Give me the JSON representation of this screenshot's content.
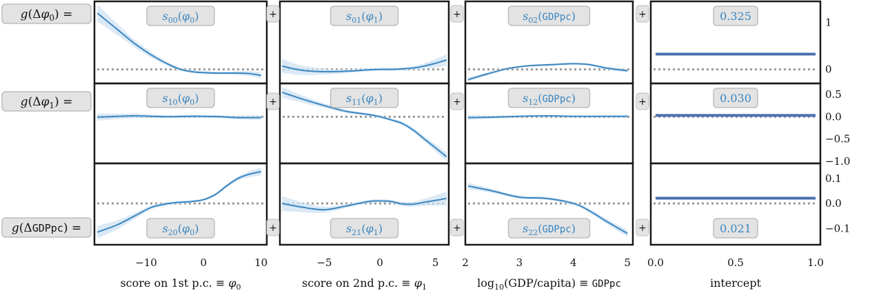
{
  "equation_labels": [
    {
      "func": "g",
      "arg_prefix": "(Δ",
      "arg": "φ",
      "sub": "0",
      "suffix": ") ="
    },
    {
      "func": "g",
      "arg_prefix": "(Δ",
      "arg": "φ",
      "sub": "1",
      "suffix": ") ="
    },
    {
      "func": "g",
      "arg_prefix": "(Δ",
      "arg": "GDPpc",
      "sub": "",
      "suffix": ") ="
    }
  ],
  "plus_sign": "+",
  "colors": {
    "line": "#3a86c0",
    "band": "#cfe2f3",
    "intercept_line": "#4a70b0",
    "zero_line": "#999999",
    "label_box_bg": "#e3e3e3",
    "label_box_border": "#bdbdbd",
    "label_text": "#3a86c0",
    "frame": "#1a1a1a"
  },
  "columns": [
    {
      "xlabel_parts": [
        {
          "t": "score on 1st p.c. ≡ "
        },
        {
          "t": "φ",
          "i": true
        },
        {
          "t": "0",
          "sub": true
        }
      ],
      "xlim": [
        -19,
        11
      ],
      "xticks": [
        -10,
        0,
        10
      ],
      "xticklabels": [
        "−10",
        "0",
        "10"
      ]
    },
    {
      "xlabel_parts": [
        {
          "t": "score on 2nd p.c. ≡ "
        },
        {
          "t": "φ",
          "i": true
        },
        {
          "t": "1",
          "sub": true
        }
      ],
      "xlim": [
        -9,
        6.2
      ],
      "xticks": [
        -5,
        0,
        5
      ],
      "xticklabels": [
        "−5",
        "0",
        "5"
      ]
    },
    {
      "xlabel_parts": [
        {
          "t": "log"
        },
        {
          "t": "10",
          "sub": true
        },
        {
          "t": "(GDP/capita) ≡ "
        },
        {
          "t": "GDPpc",
          "mono": true
        }
      ],
      "xlim": [
        2,
        5.1
      ],
      "xticks": [
        2,
        3,
        4,
        5
      ],
      "xticklabels": [
        "2",
        "3",
        "4",
        "5"
      ]
    },
    {
      "xlabel_parts": [
        {
          "t": "intercept"
        }
      ],
      "xlim": [
        -0.03,
        1.03
      ],
      "xticks": [
        0,
        0.5,
        1
      ],
      "xticklabels": [
        "0.0",
        "0.5",
        "1.0"
      ]
    }
  ],
  "rows": [
    {
      "ylim": [
        -0.3,
        1.45
      ],
      "yticks": [
        0,
        1
      ],
      "yticklabels": [
        "0",
        "1"
      ]
    },
    {
      "ylim": [
        -1.05,
        0.75
      ],
      "yticks": [
        0.5,
        0,
        -0.5,
        -1.0
      ],
      "yticklabels": [
        "0.5",
        "0.0",
        "−0.5",
        "−1.0"
      ]
    },
    {
      "ylim": [
        -0.165,
        0.16
      ],
      "yticks": [
        0.1,
        0,
        -0.1
      ],
      "yticklabels": [
        "0.1",
        "0.0",
        "−0.1"
      ]
    }
  ],
  "chart_data": {
    "type": "line",
    "layout": "3x4 small multiples; each row is a sum of a component function per input plus an intercept",
    "panels": [
      {
        "row": 0,
        "col": 0,
        "label": {
          "s": "s",
          "sub": "00",
          "arg": "φ",
          "argsub": "0"
        },
        "label_pos": "top",
        "x": [
          -18.5,
          -15,
          -12,
          -9,
          -6,
          -4,
          -2,
          0,
          2,
          4,
          6,
          8,
          10
        ],
        "y": [
          1.2,
          0.85,
          0.55,
          0.3,
          0.1,
          0.0,
          -0.05,
          -0.07,
          -0.08,
          -0.08,
          -0.08,
          -0.09,
          -0.13
        ],
        "band": [
          0.18,
          0.12,
          0.08,
          0.06,
          0.04,
          0.03,
          0.03,
          0.03,
          0.03,
          0.03,
          0.04,
          0.05,
          0.07
        ]
      },
      {
        "row": 0,
        "col": 1,
        "label": {
          "s": "s",
          "sub": "01",
          "arg": "φ",
          "argsub": "1"
        },
        "label_pos": "top",
        "x": [
          -8.8,
          -7,
          -5,
          -3,
          -1,
          0,
          1,
          2,
          3,
          4,
          5,
          6
        ],
        "y": [
          0.07,
          -0.02,
          -0.05,
          -0.04,
          -0.01,
          0.0,
          0.0,
          0.01,
          0.03,
          0.07,
          0.13,
          0.2
        ],
        "band": [
          0.15,
          0.1,
          0.06,
          0.04,
          0.03,
          0.03,
          0.03,
          0.03,
          0.04,
          0.06,
          0.09,
          0.12
        ]
      },
      {
        "row": 0,
        "col": 2,
        "label": {
          "s": "s",
          "sub": "02",
          "arg": "GDPpc",
          "argsub": ""
        },
        "label_pos": "top",
        "x": [
          2.05,
          2.4,
          2.8,
          3.2,
          3.6,
          4.0,
          4.3,
          4.6,
          5.0
        ],
        "y": [
          -0.22,
          -0.1,
          0.02,
          0.08,
          0.1,
          0.12,
          0.1,
          0.03,
          -0.03
        ],
        "band": [
          0.04,
          0.03,
          0.02,
          0.02,
          0.02,
          0.02,
          0.02,
          0.03,
          0.04
        ]
      },
      {
        "row": 0,
        "col": 3,
        "label": {
          "value": "0.325"
        },
        "label_pos": "top",
        "intercept": 0.325
      },
      {
        "row": 1,
        "col": 0,
        "label": {
          "s": "s",
          "sub": "10",
          "arg": "φ",
          "argsub": "0"
        },
        "label_pos": "top",
        "x": [
          -18.5,
          -15,
          -12,
          -9,
          -6,
          -3,
          0,
          3,
          6,
          10
        ],
        "y": [
          -0.01,
          0.01,
          0.02,
          0.01,
          0.0,
          0.01,
          0.01,
          0.0,
          -0.02,
          -0.02
        ],
        "band": [
          0.08,
          0.06,
          0.05,
          0.04,
          0.03,
          0.03,
          0.03,
          0.03,
          0.04,
          0.05
        ]
      },
      {
        "row": 1,
        "col": 1,
        "label": {
          "s": "s",
          "sub": "11",
          "arg": "φ",
          "argsub": "1"
        },
        "label_pos": "top",
        "x": [
          -8.8,
          -7,
          -5,
          -3,
          -1,
          0,
          1,
          2,
          3,
          4,
          5,
          6
        ],
        "y": [
          0.55,
          0.4,
          0.25,
          0.12,
          0.05,
          0.0,
          -0.07,
          -0.15,
          -0.3,
          -0.5,
          -0.7,
          -0.9
        ],
        "band": [
          0.12,
          0.08,
          0.05,
          0.04,
          0.03,
          0.03,
          0.03,
          0.04,
          0.05,
          0.06,
          0.08,
          0.1
        ]
      },
      {
        "row": 1,
        "col": 2,
        "label": {
          "s": "s",
          "sub": "12",
          "arg": "GDPpc",
          "argsub": ""
        },
        "label_pos": "top",
        "x": [
          2.05,
          2.5,
          3.0,
          3.5,
          4.0,
          4.5,
          5.0
        ],
        "y": [
          -0.02,
          -0.01,
          0.01,
          0.02,
          0.01,
          0.01,
          0.01
        ],
        "band": [
          0.05,
          0.03,
          0.02,
          0.02,
          0.02,
          0.02,
          0.03
        ]
      },
      {
        "row": 1,
        "col": 3,
        "label": {
          "value": "0.030"
        },
        "label_pos": "top",
        "intercept": 0.03
      },
      {
        "row": 2,
        "col": 0,
        "label": {
          "s": "s",
          "sub": "20",
          "arg": "φ",
          "argsub": "0"
        },
        "label_pos": "bottom",
        "x": [
          -18.5,
          -15,
          -12,
          -9,
          -6,
          -4,
          -2,
          0,
          2,
          4,
          6,
          8,
          10
        ],
        "y": [
          -0.115,
          -0.085,
          -0.05,
          -0.015,
          0.0,
          0.005,
          0.008,
          0.015,
          0.035,
          0.07,
          0.1,
          0.117,
          0.127
        ],
        "band": [
          0.025,
          0.018,
          0.012,
          0.008,
          0.006,
          0.005,
          0.005,
          0.005,
          0.006,
          0.007,
          0.009,
          0.012,
          0.016
        ]
      },
      {
        "row": 2,
        "col": 1,
        "label": {
          "s": "s",
          "sub": "21",
          "arg": "φ",
          "argsub": "1"
        },
        "label_pos": "bottom",
        "x": [
          -8.8,
          -7,
          -5,
          -3,
          -1,
          0,
          1,
          2,
          3,
          4,
          5,
          6
        ],
        "y": [
          0.0,
          -0.015,
          -0.025,
          -0.01,
          0.008,
          0.01,
          0.008,
          -0.002,
          -0.003,
          0.005,
          0.012,
          0.02
        ],
        "band": [
          0.03,
          0.02,
          0.012,
          0.008,
          0.006,
          0.006,
          0.006,
          0.008,
          0.01,
          0.014,
          0.02,
          0.028
        ]
      },
      {
        "row": 2,
        "col": 2,
        "label": {
          "s": "s",
          "sub": "22",
          "arg": "GDPpc",
          "argsub": ""
        },
        "label_pos": "bottom",
        "x": [
          2.05,
          2.5,
          3.0,
          3.5,
          4.0,
          4.3,
          4.6,
          5.0
        ],
        "y": [
          0.07,
          0.05,
          0.025,
          0.02,
          0.0,
          -0.03,
          -0.07,
          -0.12
        ],
        "band": [
          0.012,
          0.008,
          0.006,
          0.006,
          0.006,
          0.008,
          0.01,
          0.014
        ]
      },
      {
        "row": 2,
        "col": 3,
        "label": {
          "value": "0.021"
        },
        "label_pos": "bottom",
        "intercept": 0.021
      }
    ]
  }
}
